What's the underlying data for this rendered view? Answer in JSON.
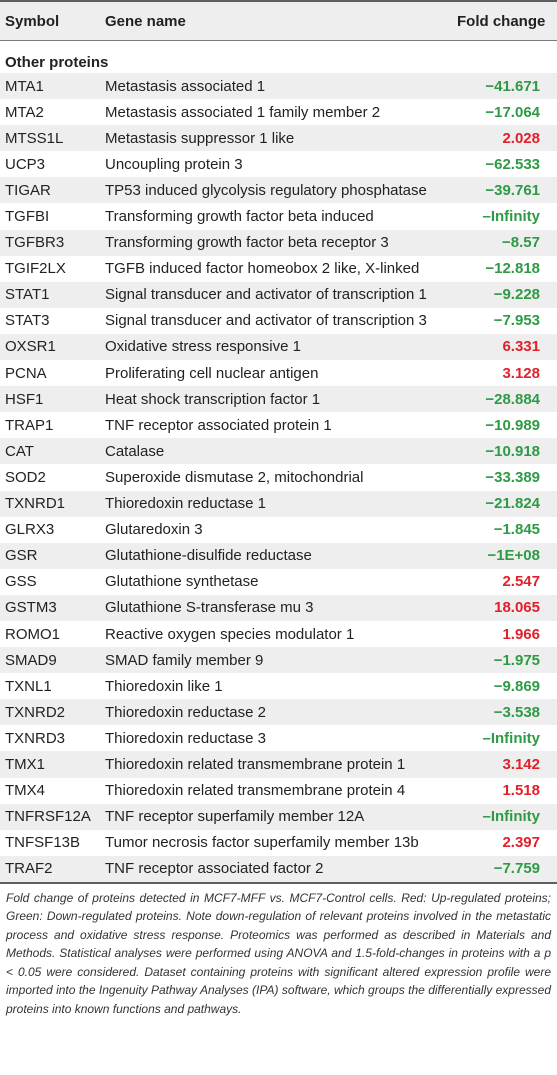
{
  "header": {
    "symbol": "Symbol",
    "gene_name": "Gene name",
    "fold_change": "Fold change"
  },
  "section": {
    "title": "Other proteins"
  },
  "colors": {
    "up": "#e0202a",
    "down": "#2e9a45"
  },
  "rows": [
    {
      "symbol": "MTA1",
      "name": "Metastasis associated 1",
      "fc": "−41.671",
      "dir": "down"
    },
    {
      "symbol": "MTA2",
      "name": "Metastasis associated 1 family member 2",
      "fc": "−17.064",
      "dir": "down"
    },
    {
      "symbol": "MTSS1L",
      "name": "Metastasis suppressor 1 like",
      "fc": "2.028",
      "dir": "up"
    },
    {
      "symbol": "UCP3",
      "name": "Uncoupling protein 3",
      "fc": "−62.533",
      "dir": "down"
    },
    {
      "symbol": "TIGAR",
      "name": "TP53 induced glycolysis regulatory phosphatase",
      "fc": "−39.761",
      "dir": "down"
    },
    {
      "symbol": "TGFBI",
      "name": "Transforming growth factor beta induced",
      "fc": "–Infinity",
      "dir": "down"
    },
    {
      "symbol": "TGFBR3",
      "name": "Transforming growth factor beta receptor 3",
      "fc": "−8.57",
      "dir": "down"
    },
    {
      "symbol": "TGIF2LX",
      "name": "TGFB induced factor homeobox 2 like, X-linked",
      "fc": "−12.818",
      "dir": "down"
    },
    {
      "symbol": "STAT1",
      "name": "Signal transducer and activator of transcription 1",
      "fc": "−9.228",
      "dir": "down"
    },
    {
      "symbol": "STAT3",
      "name": "Signal transducer and activator of transcription 3",
      "fc": "−7.953",
      "dir": "down"
    },
    {
      "symbol": "OXSR1",
      "name": "Oxidative stress responsive 1",
      "fc": "6.331",
      "dir": "up"
    },
    {
      "symbol": "PCNA",
      "name": "Proliferating cell nuclear antigen",
      "fc": "3.128",
      "dir": "up"
    },
    {
      "symbol": "HSF1",
      "name": "Heat shock transcription factor 1",
      "fc": "−28.884",
      "dir": "down"
    },
    {
      "symbol": "TRAP1",
      "name": "TNF receptor associated protein 1",
      "fc": "−10.989",
      "dir": "down"
    },
    {
      "symbol": "CAT",
      "name": "Catalase",
      "fc": "−10.918",
      "dir": "down"
    },
    {
      "symbol": "SOD2",
      "name": "Superoxide dismutase 2, mitochondrial",
      "fc": "−33.389",
      "dir": "down"
    },
    {
      "symbol": "TXNRD1",
      "name": "Thioredoxin reductase 1",
      "fc": "−21.824",
      "dir": "down"
    },
    {
      "symbol": "GLRX3",
      "name": "Glutaredoxin 3",
      "fc": "−1.845",
      "dir": "down"
    },
    {
      "symbol": "GSR",
      "name": "Glutathione-disulfide reductase",
      "fc": "−1E+08",
      "dir": "down"
    },
    {
      "symbol": "GSS",
      "name": "Glutathione synthetase",
      "fc": "2.547",
      "dir": "up"
    },
    {
      "symbol": "GSTM3",
      "name": "Glutathione S-transferase mu 3",
      "fc": "18.065",
      "dir": "up"
    },
    {
      "symbol": "ROMO1",
      "name": "Reactive oxygen species modulator 1",
      "fc": "1.966",
      "dir": "up"
    },
    {
      "symbol": "SMAD9",
      "name": "SMAD family member 9",
      "fc": "−1.975",
      "dir": "down"
    },
    {
      "symbol": "TXNL1",
      "name": "Thioredoxin like 1",
      "fc": "−9.869",
      "dir": "down"
    },
    {
      "symbol": "TXNRD2",
      "name": "Thioredoxin reductase 2",
      "fc": "−3.538",
      "dir": "down"
    },
    {
      "symbol": "TXNRD3",
      "name": "Thioredoxin reductase 3",
      "fc": "–Infinity",
      "dir": "down"
    },
    {
      "symbol": "TMX1",
      "name": "Thioredoxin related transmembrane protein 1",
      "fc": "3.142",
      "dir": "up"
    },
    {
      "symbol": "TMX4",
      "name": "Thioredoxin related transmembrane protein 4",
      "fc": "1.518",
      "dir": "up"
    },
    {
      "symbol": "TNFRSF12A",
      "name": "TNF receptor superfamily member 12A",
      "fc": "–Infinity",
      "dir": "down"
    },
    {
      "symbol": "TNFSF13B",
      "name": "Tumor necrosis factor superfamily member 13b",
      "fc": "2.397",
      "dir": "up"
    },
    {
      "symbol": "TRAF2",
      "name": "TNF receptor associated factor 2",
      "fc": "−7.759",
      "dir": "down"
    }
  ],
  "footnote": "Fold change of proteins detected in MCF7-MFF vs. MCF7-Control cells. Red: Up-regulated proteins; Green: Down-regulated proteins. Note down-regulation of relevant proteins involved in the metastatic process and oxidative stress response. Proteomics was performed as described in Materials and Methods. Statistical analyses were performed using ANOVA and 1.5-fold-changes in proteins with a p < 0.05 were considered. Dataset containing proteins with significant altered expression profile were imported into the Ingenuity Pathway Analyses (IPA) software, which groups the differentially expressed proteins into known functions and pathways."
}
